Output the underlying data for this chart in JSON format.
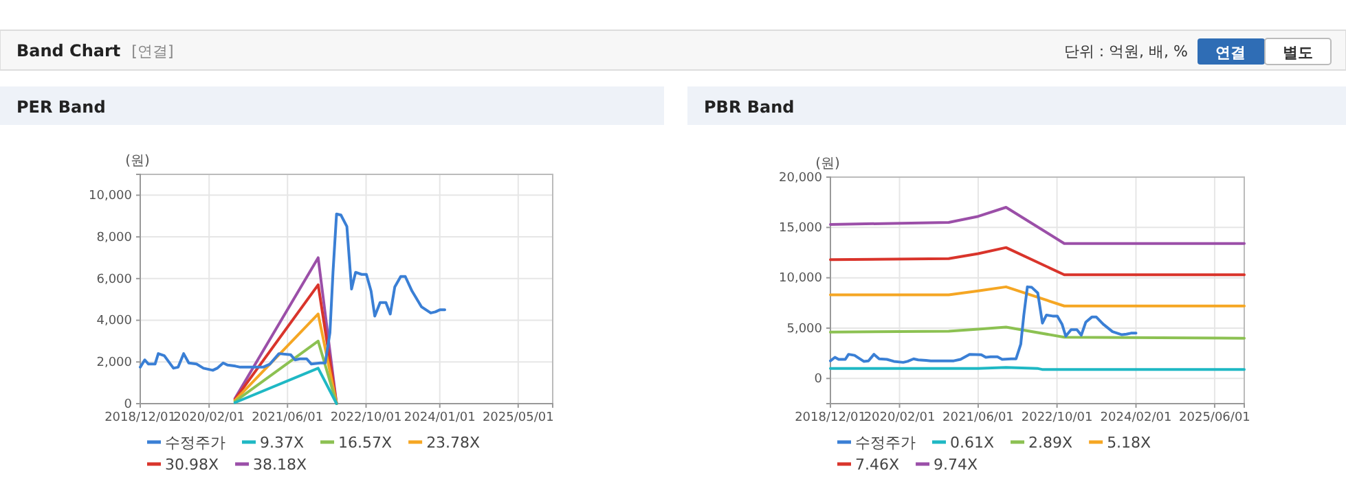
{
  "chart_data": [
    {
      "type": "other",
      "title": "Band Chart",
      "annotations": [
        "[연결]",
        "단위 : 억원, 배, %",
        "연결",
        "별도"
      ]
    },
    {
      "type": "line",
      "title": "PER Band",
      "ylabel": "(원)",
      "xlim": [
        "2018-12-01",
        "2025-12-01"
      ],
      "ylim": [
        0,
        11000
      ],
      "xticks": [
        {
          "value": "2018-12-01",
          "label": "2018/12/01"
        },
        {
          "value": "2020-02-01",
          "label": "2020/02/01"
        },
        {
          "value": "2021-06-01",
          "label": "2021/06/01"
        },
        {
          "value": "2022-10-01",
          "label": "2022/10/01"
        },
        {
          "value": "2024-01-01",
          "label": "2024/01/01"
        },
        {
          "value": "2025-05-01",
          "label": "2025/05/01"
        }
      ],
      "yticks": [
        0,
        {
          "value": 2000,
          "label": "2,000"
        },
        {
          "value": 4000,
          "label": "4,000"
        },
        {
          "value": 6000,
          "label": "6,000"
        },
        {
          "value": 8000,
          "label": "8,000"
        },
        {
          "value": 10000,
          "label": "10,000"
        }
      ],
      "grid": true,
      "legend": "bottom",
      "marker": "none",
      "line_style": "solid",
      "series": [
        {
          "name": "수정주가",
          "color": "#3a7fd5",
          "x": [
            "2018-12-01",
            "2018-12-29",
            "2019-01-21",
            "2019-03-03",
            "2019-03-23",
            "2019-04-29",
            "2019-06-25",
            "2019-07-24",
            "2019-08-27",
            "2019-09-28",
            "2019-11-15",
            "2019-12-28",
            "2020-02-24",
            "2020-03-22",
            "2020-04-28",
            "2020-05-26",
            "2020-07-13",
            "2020-08-12",
            "2020-10-22",
            "2021-01-01",
            "2021-02-12",
            "2021-04-09",
            "2021-06-20",
            "2021-07-18",
            "2021-08-16",
            "2021-09-28",
            "2021-10-27",
            "2021-12-22",
            "2022-01-21",
            "2022-02-19",
            "2022-03-10",
            "2022-04-01",
            "2022-04-28",
            "2022-06-04",
            "2022-07-03",
            "2022-07-28",
            "2022-09-04",
            "2022-10-03",
            "2022-11-01",
            "2022-11-24",
            "2022-12-27",
            "2023-02-01",
            "2023-02-28",
            "2023-03-28",
            "2023-05-04",
            "2023-06-01",
            "2023-07-13",
            "2023-09-09",
            "2023-11-06",
            "2023-12-04",
            "2024-01-01",
            "2024-02-01"
          ],
          "values": [
            1750,
            2100,
            1900,
            1900,
            2400,
            2300,
            1700,
            1750,
            2400,
            1950,
            1900,
            1700,
            1600,
            1700,
            1950,
            1850,
            1800,
            1750,
            1750,
            1750,
            1900,
            2400,
            2350,
            2100,
            2150,
            2150,
            1900,
            1950,
            1950,
            3400,
            6300,
            9100,
            9050,
            8500,
            5500,
            6300,
            6200,
            6200,
            5400,
            4200,
            4850,
            4850,
            4300,
            5600,
            6100,
            6100,
            5400,
            4650,
            4350,
            4400,
            4500,
            4500
          ]
        },
        {
          "name": "9.37X",
          "color": "#1fb8c4",
          "x": [
            "2020-07-10",
            "2021-12-08",
            "2022-04-01"
          ],
          "values": [
            50,
            1700,
            0
          ]
        },
        {
          "name": "16.57X",
          "color": "#8cc152",
          "x": [
            "2020-07-10",
            "2021-12-08",
            "2022-04-01"
          ],
          "values": [
            100,
            3000,
            0
          ]
        },
        {
          "name": "23.78X",
          "color": "#f5a623",
          "x": [
            "2020-07-10",
            "2021-12-08",
            "2022-04-01"
          ],
          "values": [
            150,
            4300,
            0
          ]
        },
        {
          "name": "30.98X",
          "color": "#d9342b",
          "x": [
            "2020-07-10",
            "2021-12-08",
            "2022-04-01"
          ],
          "values": [
            200,
            5700,
            0
          ]
        },
        {
          "name": "38.18X",
          "color": "#9b4fa8",
          "x": [
            "2020-07-10",
            "2021-12-08",
            "2022-04-01"
          ],
          "values": [
            250,
            7000,
            0
          ]
        }
      ]
    },
    {
      "type": "line",
      "title": "PBR Band",
      "ylabel": "(원)",
      "xlim": [
        "2018-12-01",
        "2025-12-01"
      ],
      "ylim": [
        -2500,
        20000
      ],
      "xticks": [
        {
          "value": "2018-12-01",
          "label": "2018/12/01"
        },
        {
          "value": "2020-02-01",
          "label": "2020/02/01"
        },
        {
          "value": "2021-06-01",
          "label": "2021/06/01"
        },
        {
          "value": "2022-10-01",
          "label": "2022/10/01"
        },
        {
          "value": "2024-02-01",
          "label": "2024/02/01"
        },
        {
          "value": "2025-06-01",
          "label": "2025/06/01"
        }
      ],
      "yticks": [
        0,
        {
          "value": 5000,
          "label": "5,000"
        },
        {
          "value": 10000,
          "label": "10,000"
        },
        {
          "value": 15000,
          "label": "15,000"
        },
        {
          "value": 20000,
          "label": "20,000"
        }
      ],
      "grid": true,
      "legend": "bottom",
      "marker": "none",
      "line_style": "solid",
      "series": [
        {
          "name": "수정주가",
          "color": "#3a7fd5",
          "x": [
            "2018-12-01",
            "2018-12-29",
            "2019-01-21",
            "2019-03-03",
            "2019-03-23",
            "2019-04-29",
            "2019-06-25",
            "2019-07-24",
            "2019-08-27",
            "2019-09-28",
            "2019-11-15",
            "2019-12-28",
            "2020-02-24",
            "2020-03-22",
            "2020-04-28",
            "2020-05-26",
            "2020-07-13",
            "2020-08-12",
            "2020-10-22",
            "2021-01-01",
            "2021-02-12",
            "2021-04-09",
            "2021-06-20",
            "2021-07-18",
            "2021-08-16",
            "2021-09-28",
            "2021-10-27",
            "2021-12-22",
            "2022-01-21",
            "2022-02-19",
            "2022-03-10",
            "2022-04-01",
            "2022-04-28",
            "2022-06-04",
            "2022-07-03",
            "2022-07-28",
            "2022-09-04",
            "2022-10-03",
            "2022-11-01",
            "2022-11-24",
            "2022-12-27",
            "2023-02-01",
            "2023-02-28",
            "2023-03-28",
            "2023-05-04",
            "2023-06-01",
            "2023-07-13",
            "2023-09-09",
            "2023-11-06",
            "2023-12-04",
            "2024-01-01",
            "2024-02-01"
          ],
          "values": [
            1750,
            2100,
            1900,
            1900,
            2400,
            2300,
            1700,
            1750,
            2400,
            1950,
            1900,
            1700,
            1600,
            1700,
            1950,
            1850,
            1800,
            1750,
            1750,
            1750,
            1900,
            2400,
            2350,
            2100,
            2150,
            2150,
            1900,
            1950,
            1950,
            3400,
            6300,
            9100,
            9050,
            8500,
            5500,
            6300,
            6200,
            6200,
            5400,
            4200,
            4850,
            4850,
            4300,
            5600,
            6100,
            6100,
            5400,
            4650,
            4350,
            4400,
            4500,
            4500
          ]
        },
        {
          "name": "0.61X",
          "color": "#1fb8c4",
          "x": [
            "2018-12-01",
            "2021-06-01",
            "2021-11-20",
            "2022-06-01",
            "2022-07-01",
            "2025-12-01"
          ],
          "values": [
            1000,
            1000,
            1100,
            1000,
            900,
            900
          ]
        },
        {
          "name": "2.89X",
          "color": "#8cc152",
          "x": [
            "2018-12-01",
            "2020-12-01",
            "2021-06-01",
            "2021-11-20",
            "2022-11-15",
            "2025-12-01"
          ],
          "values": [
            4600,
            4700,
            4900,
            5100,
            4100,
            4000
          ]
        },
        {
          "name": "5.18X",
          "color": "#f5a623",
          "x": [
            "2018-12-01",
            "2020-12-01",
            "2021-06-01",
            "2021-11-20",
            "2022-11-15",
            "2025-12-01"
          ],
          "values": [
            8300,
            8300,
            8700,
            9100,
            7200,
            7200
          ]
        },
        {
          "name": "7.46X",
          "color": "#d9342b",
          "x": [
            "2018-12-01",
            "2020-12-01",
            "2021-06-01",
            "2021-11-20",
            "2022-11-15",
            "2025-12-01"
          ],
          "values": [
            11800,
            11900,
            12400,
            13000,
            10300,
            10300
          ]
        },
        {
          "name": "9.74X",
          "color": "#9b4fa8",
          "x": [
            "2018-12-01",
            "2020-12-01",
            "2021-06-01",
            "2021-11-20",
            "2022-11-15",
            "2025-12-01"
          ],
          "values": [
            15300,
            15500,
            16100,
            17000,
            13400,
            13400
          ]
        }
      ]
    }
  ]
}
